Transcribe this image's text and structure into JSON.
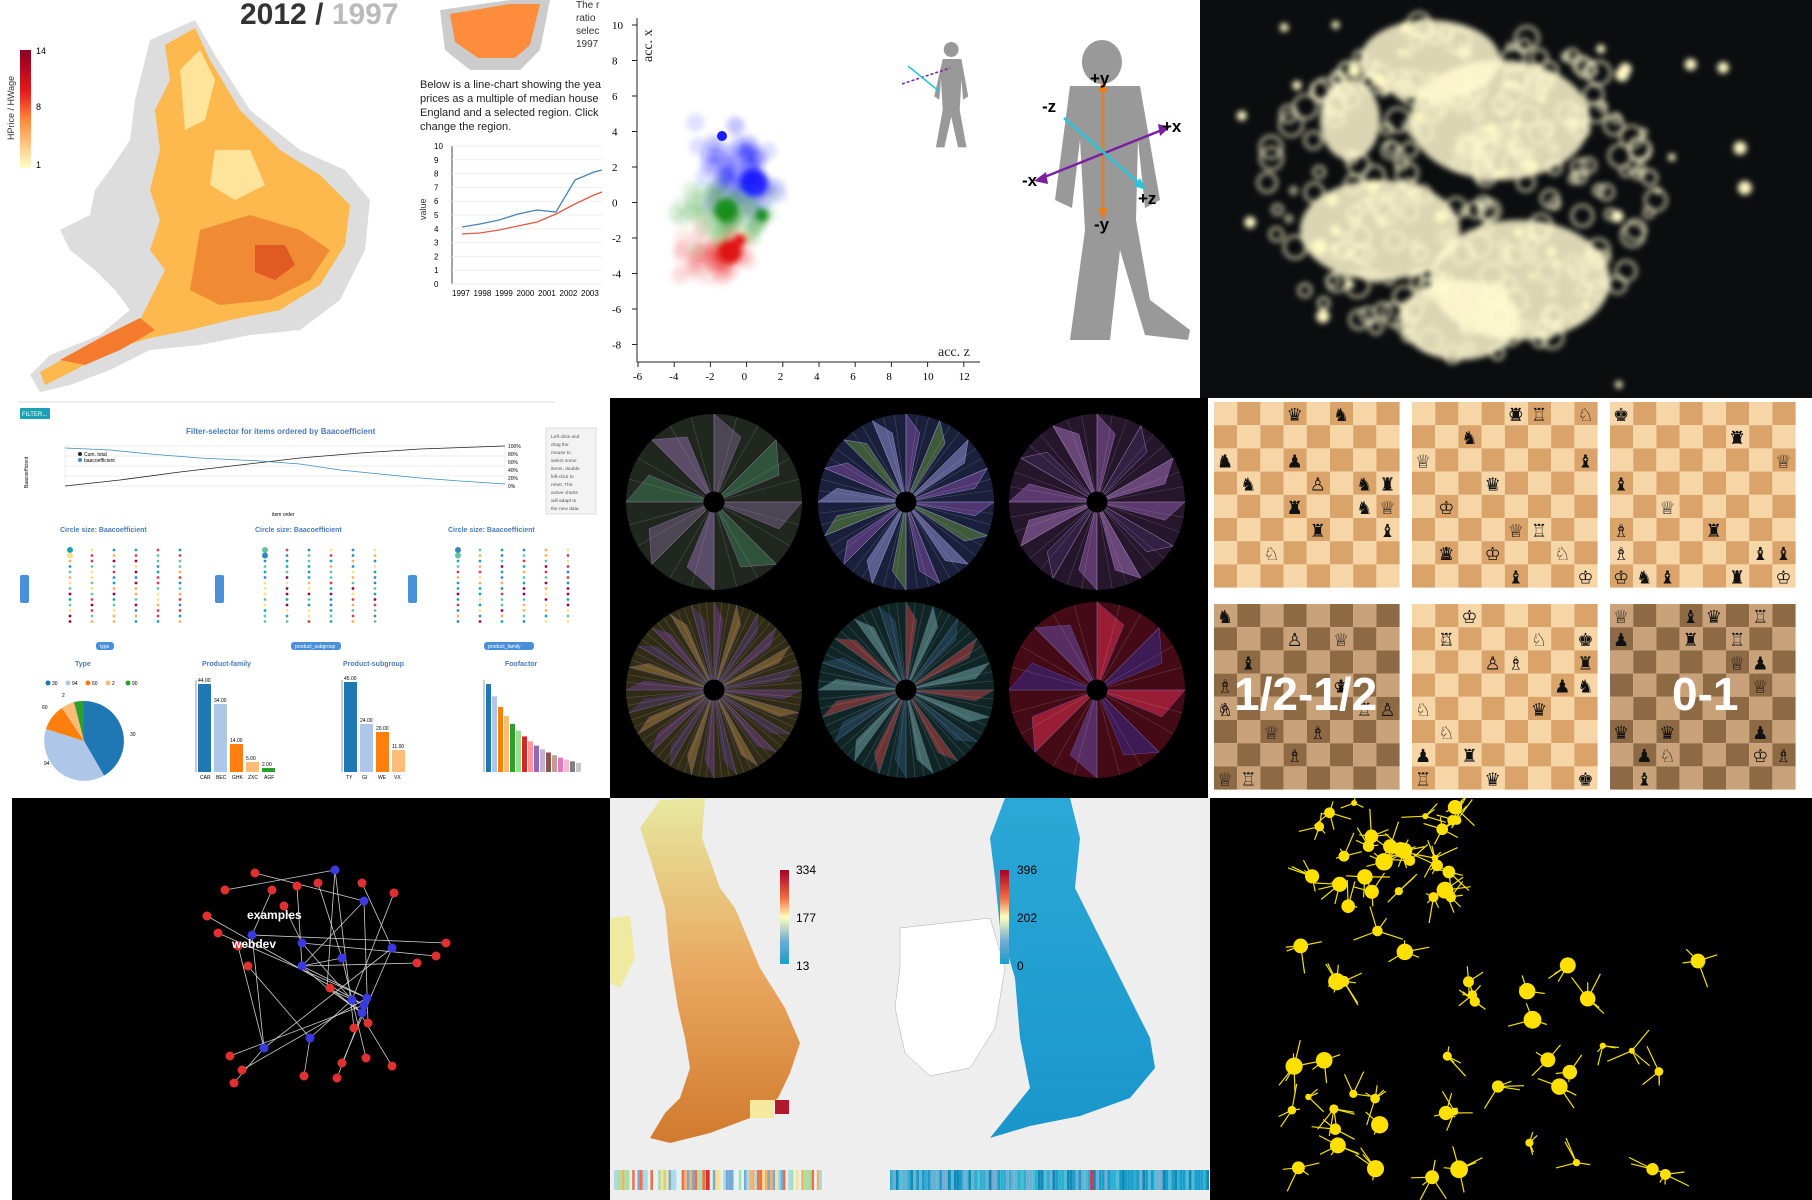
{
  "map_tile": {
    "year_current": "2012",
    "year_sep": " / ",
    "year_past": "1997",
    "legend_label": "HPrice / HWage",
    "legend_ticks": [
      "14",
      "8",
      "1"
    ],
    "caption_top": [
      "The r",
      "ratio",
      "selec",
      "1997"
    ],
    "description": [
      "Below is a line-chart showing the yea",
      "prices as a multiple of median house",
      "England and a selected region. Click",
      "change the region."
    ],
    "line_chart": {
      "ylabel": "value",
      "yticks": [
        "10",
        "9",
        "8",
        "7",
        "6",
        "5",
        "4",
        "3",
        "2",
        "1",
        "0"
      ],
      "xticks": [
        "1997",
        "1998",
        "1999",
        "2000",
        "2001",
        "2002",
        "2003",
        "20"
      ]
    }
  },
  "accel_tile": {
    "y_axis_label": "acc. x",
    "x_axis_label": "acc. z",
    "yticks": [
      "10",
      "8",
      "6",
      "4",
      "2",
      "0",
      "-2",
      "-4",
      "-6",
      "-8"
    ],
    "xticks": [
      "-6",
      "-4",
      "-2",
      "0",
      "2",
      "4",
      "6",
      "8",
      "10",
      "12"
    ],
    "axis_labels": {
      "py": "+y",
      "ny": "-y",
      "px": "+x",
      "nx": "-x",
      "pz": "+z",
      "nz": "-z"
    },
    "colors": {
      "blue": "#1a1aff",
      "green": "#138a13",
      "red": "#e01010",
      "cyan": "#26c6da",
      "purple": "#7b1fa2",
      "orange": "#e67e22"
    }
  },
  "dashboard_tile": {
    "filter_button": "FILTER...",
    "title": "Filter-selector for items ordered by Baacoefficient",
    "legend": [
      "Cum. total",
      "baacoefficient"
    ],
    "y_label": "Baacoefficient",
    "x_label": "item order",
    "right_pct": [
      "100%",
      "80%",
      "60%",
      "40%",
      "20%",
      "0%"
    ],
    "help_text": [
      "Left-click and",
      "drag the",
      "mouse to",
      "select some",
      "items, double",
      "left-click to",
      "reset. The",
      "active charts",
      "will adapt to",
      "the new data."
    ],
    "circle_titles": [
      "Circle size: Baacoefficient",
      "Circle size: Baacoefficient",
      "Circle size: Baacoefficient"
    ],
    "circle_badges": [
      "type",
      "product_subgroup",
      "product_family"
    ],
    "bottom_titles": [
      "Type",
      "Product-family",
      "Product-subgroup",
      "Foofactor"
    ],
    "type_legend": [
      "30",
      "94",
      "60",
      "2",
      "90"
    ],
    "pie_labels": [
      "2",
      "60",
      "30",
      "94"
    ],
    "family_values": [
      "44.00",
      "34.00",
      "14.00",
      "5.00",
      "2.00"
    ],
    "family_cats": [
      "CAR",
      "BEC",
      "GHK",
      "ZXC",
      "AGF"
    ],
    "subgroup_values": [
      "45.00",
      "24.00",
      "20.00",
      "11.00"
    ],
    "subgroup_cats": [
      "TY",
      "GI",
      "WE",
      "VX"
    ]
  },
  "chess_tile": {
    "results": [
      "1/2-1/2",
      "0-1"
    ]
  },
  "network_tile": {
    "labels": [
      "examples",
      "webdev"
    ]
  },
  "uk_tile": {
    "left_ticks": [
      "334",
      "177",
      "13"
    ],
    "right_ticks": [
      "396",
      "202",
      "0"
    ]
  }
}
